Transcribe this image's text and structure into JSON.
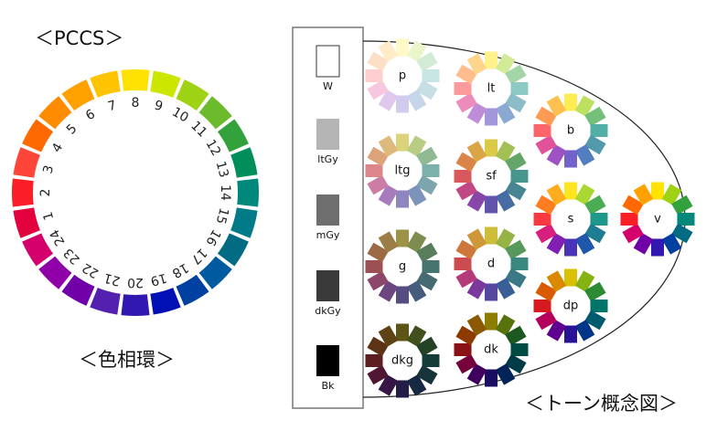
{
  "titles": {
    "pccs": "＜PCCS＞",
    "hue_circle": "＜色相環＞",
    "tone_diagram": "＜トーン概念図＞"
  },
  "hues": [
    {
      "number": "1",
      "color": "#e1023e"
    },
    {
      "number": "2",
      "color": "#fb1e26"
    },
    {
      "number": "3",
      "color": "#ff4438"
    },
    {
      "number": "4",
      "color": "#ff6a00"
    },
    {
      "number": "5",
      "color": "#ff8c00"
    },
    {
      "number": "6",
      "color": "#ffa200"
    },
    {
      "number": "7",
      "color": "#ffc300"
    },
    {
      "number": "8",
      "color": "#ffe200"
    },
    {
      "number": "9",
      "color": "#cde600"
    },
    {
      "number": "10",
      "color": "#9ed215"
    },
    {
      "number": "11",
      "color": "#6cbb2d"
    },
    {
      "number": "12",
      "color": "#33a23c"
    },
    {
      "number": "13",
      "color": "#008f5a"
    },
    {
      "number": "14",
      "color": "#00897a"
    },
    {
      "number": "15",
      "color": "#007b87"
    },
    {
      "number": "16",
      "color": "#006b82"
    },
    {
      "number": "17",
      "color": "#005aa0"
    },
    {
      "number": "18",
      "color": "#0040a0"
    },
    {
      "number": "19",
      "color": "#0010b4"
    },
    {
      "number": "20",
      "color": "#3018b0"
    },
    {
      "number": "21",
      "color": "#5420b0"
    },
    {
      "number": "22",
      "color": "#7000a8"
    },
    {
      "number": "23",
      "color": "#9000a8"
    },
    {
      "number": "24",
      "color": "#d4006c"
    }
  ],
  "grays": [
    {
      "label": "W",
      "color": "#ffffff"
    },
    {
      "label": "ltGy",
      "color": "#b4b4b4"
    },
    {
      "label": "mGy",
      "color": "#6e6e6e"
    },
    {
      "label": "dkGy",
      "color": "#3a3a3a"
    },
    {
      "label": "Bk",
      "color": "#000000"
    }
  ],
  "tones": [
    "p",
    "lt",
    "b",
    "ltg",
    "sf",
    "s",
    "v",
    "g",
    "d",
    "dp",
    "dkg",
    "dk"
  ]
}
